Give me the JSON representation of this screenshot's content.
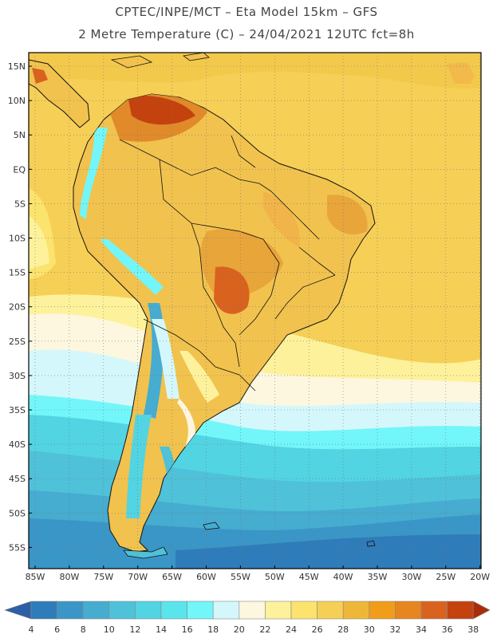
{
  "header": {
    "line1": "CPTEC/INPE/MCT –  Eta Model 15km – GFS",
    "line2": "2 Metre Temperature (C) – 24/04/2021 12UTC fct=8h"
  },
  "map": {
    "lat_labels": [
      "15N",
      "10N",
      "5N",
      "EQ",
      "5S",
      "10S",
      "15S",
      "20S",
      "25S",
      "30S",
      "35S",
      "40S",
      "45S",
      "50S",
      "55S"
    ],
    "lon_labels": [
      "85W",
      "80W",
      "75W",
      "70W",
      "65W",
      "60W",
      "55W",
      "50W",
      "45W",
      "40W",
      "35W",
      "30W",
      "25W",
      "20W"
    ],
    "ocean_color": "#f6cf56",
    "land_color": "#f1c24e",
    "grid": true
  },
  "legend": {
    "ticks": [
      "4",
      "6",
      "8",
      "10",
      "12",
      "14",
      "16",
      "18",
      "20",
      "22",
      "24",
      "26",
      "28",
      "30",
      "32",
      "34",
      "36",
      "38"
    ],
    "colors": [
      "#2c5fa5",
      "#2f7cba",
      "#3a96c6",
      "#46acd0",
      "#4fc1d9",
      "#52d4e2",
      "#5ae4ec",
      "#72f6f9",
      "#d4f7fb",
      "#fdf7e0",
      "#fdf29b",
      "#fbe36d",
      "#f6cf56",
      "#efb738",
      "#f19d1a",
      "#e7851e",
      "#d9621f",
      "#c4420e",
      "#aa2d09"
    ]
  }
}
